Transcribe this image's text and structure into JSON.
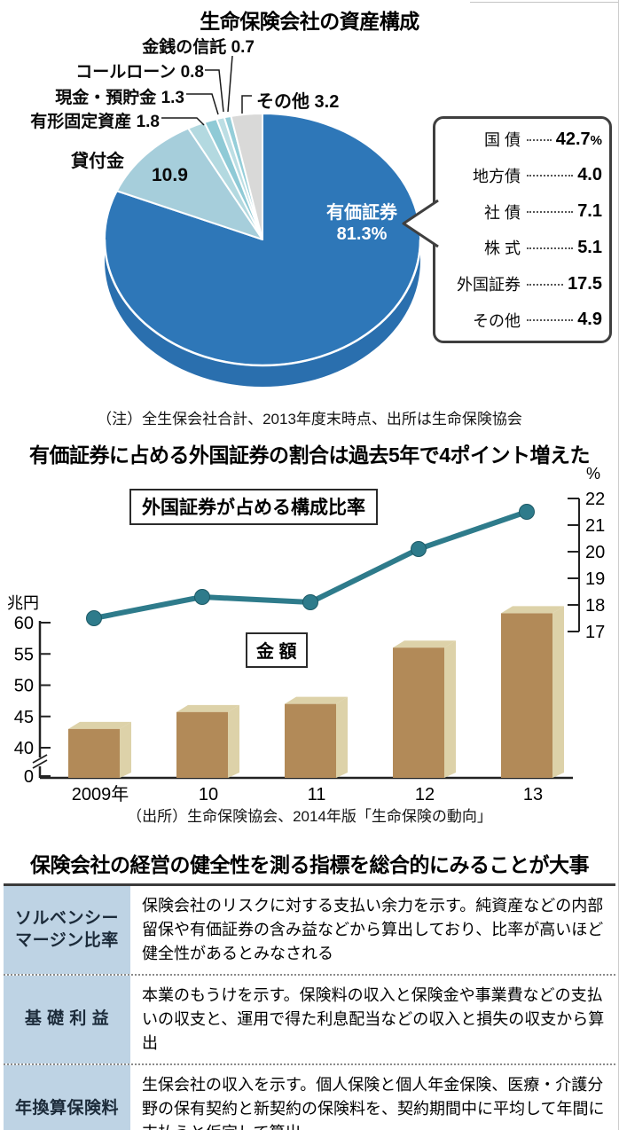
{
  "section1": {
    "title": "生命保険会社の資産構成",
    "callouts": {
      "trust": "金銭の信託 0.7",
      "call_loan": "コールローン 0.8",
      "cash": "現金・預貯金 1.3",
      "fixed_assets": "有形固定資産 1.8",
      "others": "その他 3.2",
      "loans_label": "貸付金",
      "loans_value": "10.9",
      "securities_line1": "有価証券",
      "securities_line2": "81.3%"
    },
    "legend": [
      {
        "label": "国 債",
        "value": "42.7",
        "suffix": "%"
      },
      {
        "label": "地方債",
        "value": "4.0",
        "suffix": ""
      },
      {
        "label": "社 債",
        "value": "7.1",
        "suffix": ""
      },
      {
        "label": "株 式",
        "value": "5.1",
        "suffix": ""
      },
      {
        "label": "外国証券",
        "value": "17.5",
        "suffix": ""
      },
      {
        "label": "その他",
        "value": "4.9",
        "suffix": ""
      }
    ],
    "note": "（注）全生保会社合計、2013年度末時点、出所は生命保険協会"
  },
  "section2": {
    "title": "有価証券に占める外国証券の割合は過去5年で4ポイント増えた",
    "line_box_label": "外国証券が占める構成比率",
    "bar_box_label": "金 額",
    "left_axis_unit": "兆円",
    "right_axis_unit": "%",
    "source": "（出所）生命保険協会、2014年版「生命保険の動向」"
  },
  "section3": {
    "title": "保険会社の経営の健全性を測る指標を総合的にみることが大事",
    "rows": [
      {
        "term": "ソルベンシー\nマージン比率",
        "desc": "保険会社のリスクに対する支払い余力を示す。純資産などの内部留保や有価証券の含み益などから算出しており、比率が高いほど健全性があるとみなされる"
      },
      {
        "term": "基 礎 利 益",
        "desc": "本業のもうけを示す。保険料の収入と保険金や事業費などの支払いの収支と、運用で得た利息配当などの収入と損失の収支から算出"
      },
      {
        "term": "年換算保険料",
        "desc": "生保会社の収入を示す。個人保険と個人年金保険、医療・介護分野の保有契約と新契約の保険料を、契約期間中に平均して年間に支払うと仮定して算出"
      }
    ]
  },
  "chart_data": [
    {
      "type": "pie",
      "title": "生命保険会社の資産構成",
      "unit": "%",
      "slices": [
        {
          "label": "有価証券",
          "value": 81.3,
          "color": "#2e77b8"
        },
        {
          "label": "貸付金",
          "value": 10.9,
          "color": "#a6cedb"
        },
        {
          "label": "有形固定資産",
          "value": 1.8,
          "color": "#b3d9e0"
        },
        {
          "label": "現金・預貯金",
          "value": 1.3,
          "color": "#8fcad6"
        },
        {
          "label": "コールローン",
          "value": 0.8,
          "color": "#bcdee4"
        },
        {
          "label": "金銭の信託",
          "value": 0.7,
          "color": "#95ced9"
        },
        {
          "label": "その他",
          "value": 3.2,
          "color": "#d9d9d8"
        }
      ],
      "depth_color": "#2a6fae",
      "securities_breakdown": {
        "labels": [
          "国債",
          "地方債",
          "社債",
          "株式",
          "外国証券",
          "その他"
        ],
        "values": [
          42.7,
          4.0,
          7.1,
          5.1,
          17.5,
          4.9
        ]
      },
      "note": "全生保会社合計、2013年度末時点、出所は生命保険協会"
    },
    {
      "type": "bar+line",
      "title": "有価証券に占める外国証券の割合は過去5年で4ポイント増えた",
      "categories": [
        "2009年",
        "10",
        "11",
        "12",
        "13"
      ],
      "series": [
        {
          "name": "金額",
          "type": "bar",
          "unit": "兆円",
          "values": [
            43,
            45.7,
            47,
            56,
            61.5
          ],
          "color": "#b28a58",
          "color_top": "#ddd2a9"
        },
        {
          "name": "外国証券が占める構成比率",
          "type": "line",
          "unit": "%",
          "values": [
            17.5,
            18.3,
            18.1,
            20.1,
            21.5
          ],
          "color": "#2e7b8b"
        }
      ],
      "left_axis": {
        "unit": "兆円",
        "ticks": [
          60,
          55,
          50,
          45,
          40,
          0
        ],
        "broken": true
      },
      "right_axis": {
        "unit": "%",
        "ticks": [
          22,
          21,
          20,
          19,
          18,
          17
        ]
      },
      "legend_position": "boxed-labels-inside-plot",
      "grid": false,
      "source": "生命保険協会、2014年版「生命保険の動向」"
    }
  ]
}
